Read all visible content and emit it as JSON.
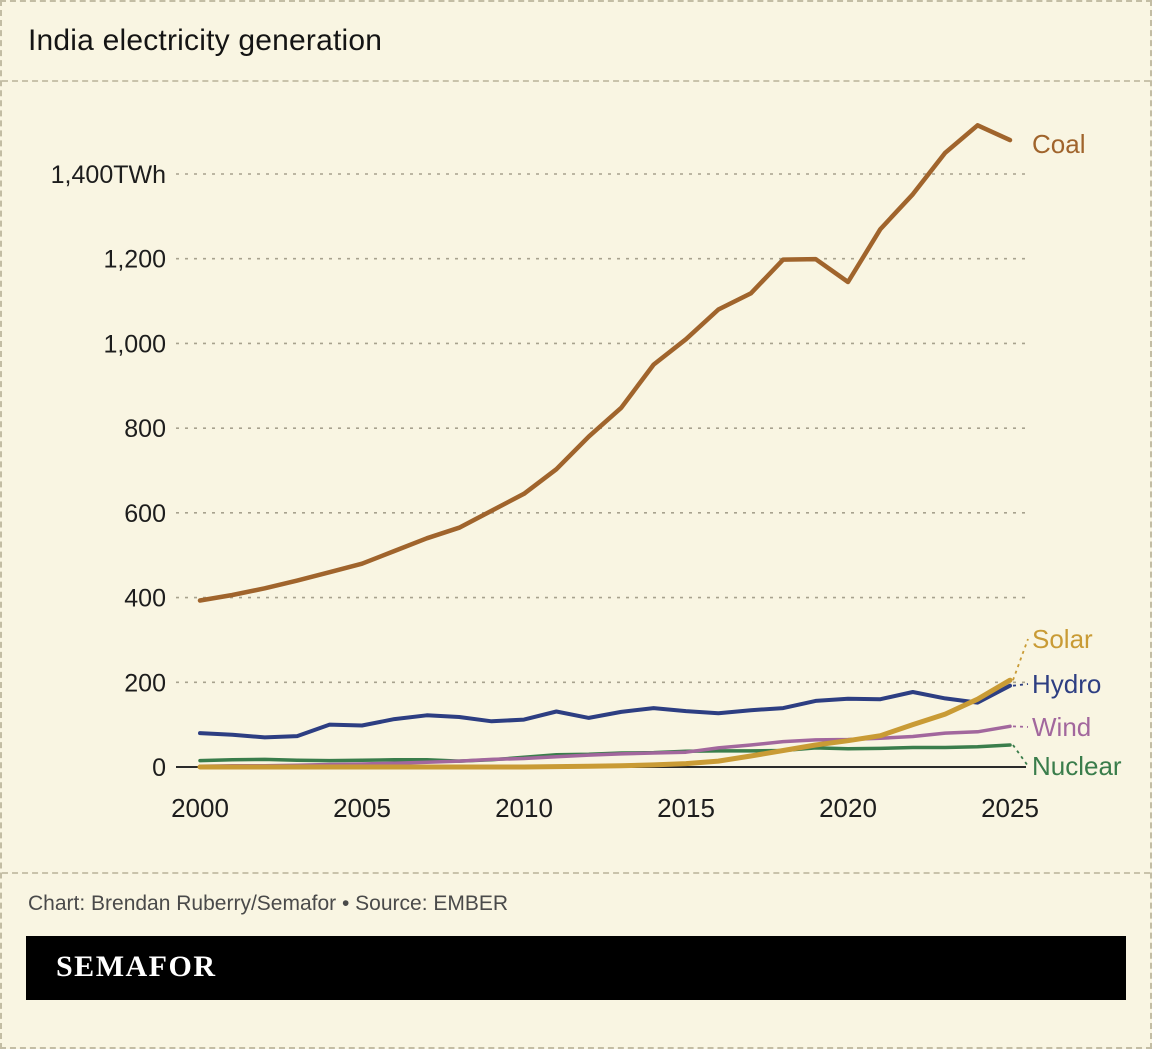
{
  "page": {
    "title": "India electricity generation",
    "credit": "Chart: Brendan Ruberry/Semafor • Source: EMBER",
    "logo_text": "SEMAFOR"
  },
  "colors": {
    "background": "#f9f5e2",
    "border_dashed": "#c3bda4",
    "gridline": "#a8a28e",
    "axis": "#2b2b2b",
    "tick_text": "#1d1d1d",
    "credit_text": "#4a4a4a",
    "logo_bg": "#000000",
    "logo_text": "#ffffff"
  },
  "chart_data": {
    "type": "line",
    "title": "India electricity generation",
    "ylabel": "TWh",
    "xlabel": "",
    "grid": "horizontal-dashed",
    "legend_position": "right-end-labels",
    "ylim": [
      0,
      1560
    ],
    "x": [
      2000,
      2001,
      2002,
      2003,
      2004,
      2005,
      2006,
      2007,
      2008,
      2009,
      2010,
      2011,
      2012,
      2013,
      2014,
      2015,
      2016,
      2017,
      2018,
      2019,
      2020,
      2021,
      2022,
      2023,
      2024,
      2025
    ],
    "xticks": [
      2000,
      2005,
      2010,
      2015,
      2020,
      2025
    ],
    "yticks": [
      0,
      200,
      400,
      600,
      800,
      1000,
      1200,
      1400
    ],
    "ytick_labels": [
      "0",
      "200",
      "400",
      "600",
      "800",
      "1,000",
      "1,200",
      "1,400TWh"
    ],
    "series": [
      {
        "name": "Coal",
        "color": "#a0642c",
        "values": [
          393,
          406,
          422,
          440,
          460,
          480,
          510,
          540,
          565,
          605,
          645,
          703,
          780,
          848,
          950,
          1010,
          1080,
          1118,
          1198,
          1199,
          1145,
          1270,
          1352,
          1450,
          1515,
          1480
        ]
      },
      {
        "name": "Solar",
        "color": "#c99b35",
        "values": [
          0,
          0,
          0,
          0,
          0,
          0,
          0,
          0,
          0,
          0,
          0,
          1,
          2,
          3,
          5,
          8,
          14,
          26,
          39,
          52,
          62,
          74,
          100,
          125,
          160,
          205
        ]
      },
      {
        "name": "Hydro",
        "color": "#2d3e82",
        "values": [
          80,
          76,
          70,
          73,
          100,
          98,
          113,
          122,
          118,
          108,
          112,
          131,
          116,
          130,
          139,
          132,
          127,
          134,
          139,
          156,
          161,
          160,
          177,
          162,
          152,
          192
        ]
      },
      {
        "name": "Wind",
        "color": "#a2679d",
        "values": [
          2,
          3,
          3,
          4,
          6,
          7,
          9,
          11,
          14,
          18,
          20,
          24,
          28,
          31,
          33,
          35,
          45,
          52,
          60,
          64,
          65,
          68,
          72,
          80,
          83,
          96
        ]
      },
      {
        "name": "Nuclear",
        "color": "#3a7d4b",
        "values": [
          15,
          17,
          18,
          16,
          15,
          16,
          17,
          17,
          14,
          17,
          23,
          29,
          30,
          33,
          34,
          37,
          38,
          38,
          39,
          45,
          43,
          44,
          46,
          46,
          48,
          52
        ]
      }
    ]
  }
}
